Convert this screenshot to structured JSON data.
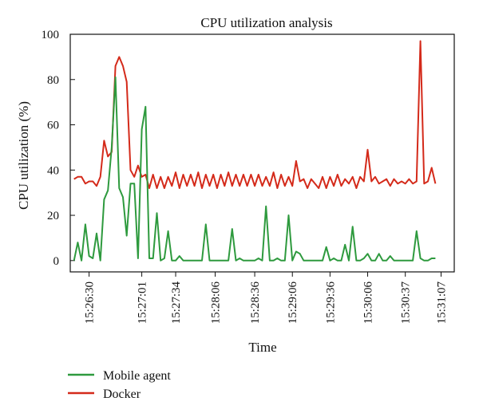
{
  "chart_data": {
    "type": "line",
    "title": "CPU utilization analysis",
    "xlabel": "Time",
    "ylabel": "CPU utilization (%)",
    "ylim": [
      -5,
      100
    ],
    "xlim": [
      -1,
      101
    ],
    "yticks": [
      0,
      20,
      40,
      60,
      80,
      100
    ],
    "grid": false,
    "legend": {
      "position": "bottom-left"
    },
    "x_ticks": [
      {
        "x": 4,
        "label": "15:26:30"
      },
      {
        "x": 18,
        "label": "15:27:01"
      },
      {
        "x": 27,
        "label": "15:27:34"
      },
      {
        "x": 37.5,
        "label": "15:28:06"
      },
      {
        "x": 48,
        "label": "15:28:36"
      },
      {
        "x": 58,
        "label": "15:29:06"
      },
      {
        "x": 68,
        "label": "15:29:36"
      },
      {
        "x": 78,
        "label": "15:30:06"
      },
      {
        "x": 88,
        "label": "15:30:37"
      },
      {
        "x": 97.5,
        "label": "15:31:07"
      }
    ],
    "series": [
      {
        "name": "Docker",
        "color": "#d42a1a",
        "points": [
          [
            0,
            36
          ],
          [
            1,
            37
          ],
          [
            2,
            37
          ],
          [
            3,
            34
          ],
          [
            4,
            35
          ],
          [
            5,
            35
          ],
          [
            6,
            33
          ],
          [
            7,
            37
          ],
          [
            8,
            53
          ],
          [
            9,
            46
          ],
          [
            10,
            48
          ],
          [
            11,
            86
          ],
          [
            12,
            90
          ],
          [
            13,
            86
          ],
          [
            14,
            79
          ],
          [
            15,
            40
          ],
          [
            16,
            37
          ],
          [
            17,
            42
          ],
          [
            18,
            37
          ],
          [
            19,
            38
          ],
          [
            20,
            32
          ],
          [
            21,
            38
          ],
          [
            22,
            32
          ],
          [
            23,
            37
          ],
          [
            24,
            32
          ],
          [
            25,
            37
          ],
          [
            26,
            33
          ],
          [
            27,
            39
          ],
          [
            28,
            32
          ],
          [
            29,
            38
          ],
          [
            30,
            33
          ],
          [
            31,
            38
          ],
          [
            32,
            33
          ],
          [
            33,
            39
          ],
          [
            34,
            32
          ],
          [
            35,
            38
          ],
          [
            36,
            33
          ],
          [
            37,
            38
          ],
          [
            38,
            32
          ],
          [
            39,
            38
          ],
          [
            40,
            33
          ],
          [
            41,
            39
          ],
          [
            42,
            33
          ],
          [
            43,
            38
          ],
          [
            44,
            33
          ],
          [
            45,
            38
          ],
          [
            46,
            33
          ],
          [
            47,
            38
          ],
          [
            48,
            33
          ],
          [
            49,
            38
          ],
          [
            50,
            33
          ],
          [
            51,
            37
          ],
          [
            52,
            33
          ],
          [
            53,
            39
          ],
          [
            54,
            32
          ],
          [
            55,
            38
          ],
          [
            56,
            33
          ],
          [
            57,
            37
          ],
          [
            58,
            33
          ],
          [
            59,
            44
          ],
          [
            60,
            35
          ],
          [
            61,
            36
          ],
          [
            62,
            32
          ],
          [
            63,
            36
          ],
          [
            64,
            34
          ],
          [
            65,
            32
          ],
          [
            66,
            37
          ],
          [
            67,
            32
          ],
          [
            68,
            37
          ],
          [
            69,
            33
          ],
          [
            70,
            38
          ],
          [
            71,
            33
          ],
          [
            72,
            36
          ],
          [
            73,
            34
          ],
          [
            74,
            37
          ],
          [
            75,
            32
          ],
          [
            76,
            37
          ],
          [
            77,
            35
          ],
          [
            78,
            49
          ],
          [
            79,
            35
          ],
          [
            80,
            37
          ],
          [
            81,
            34
          ],
          [
            82,
            35
          ],
          [
            83,
            36
          ],
          [
            84,
            33
          ],
          [
            85,
            36
          ],
          [
            86,
            34
          ],
          [
            87,
            35
          ],
          [
            88,
            34
          ],
          [
            89,
            36
          ],
          [
            90,
            34
          ],
          [
            91,
            35
          ],
          [
            92,
            97
          ],
          [
            93,
            34
          ],
          [
            94,
            35
          ],
          [
            95,
            41
          ],
          [
            96,
            34
          ]
        ]
      },
      {
        "name": "Mobile agent",
        "color": "#2e9a3e",
        "points": [
          [
            0,
            0
          ],
          [
            1,
            8
          ],
          [
            2,
            0
          ],
          [
            3,
            16
          ],
          [
            4,
            2
          ],
          [
            5,
            1
          ],
          [
            6,
            12
          ],
          [
            7,
            0
          ],
          [
            8,
            27
          ],
          [
            9,
            31
          ],
          [
            10,
            50
          ],
          [
            11,
            81
          ],
          [
            12,
            32
          ],
          [
            13,
            28
          ],
          [
            14,
            11
          ],
          [
            15,
            34
          ],
          [
            16,
            34
          ],
          [
            17,
            1
          ],
          [
            18,
            58
          ],
          [
            19,
            68
          ],
          [
            20,
            1
          ],
          [
            21,
            1
          ],
          [
            22,
            21
          ],
          [
            23,
            0
          ],
          [
            24,
            1
          ],
          [
            25,
            13
          ],
          [
            26,
            0
          ],
          [
            27,
            0
          ],
          [
            28,
            2
          ],
          [
            29,
            0
          ],
          [
            30,
            0
          ],
          [
            31,
            0
          ],
          [
            32,
            0
          ],
          [
            33,
            0
          ],
          [
            34,
            0
          ],
          [
            35,
            16
          ],
          [
            36,
            0
          ],
          [
            37,
            0
          ],
          [
            38,
            0
          ],
          [
            39,
            0
          ],
          [
            40,
            0
          ],
          [
            41,
            0
          ],
          [
            42,
            14
          ],
          [
            43,
            0
          ],
          [
            44,
            1
          ],
          [
            45,
            0
          ],
          [
            46,
            0
          ],
          [
            47,
            0
          ],
          [
            48,
            0
          ],
          [
            49,
            1
          ],
          [
            50,
            0
          ],
          [
            51,
            24
          ],
          [
            52,
            0
          ],
          [
            53,
            0
          ],
          [
            54,
            1
          ],
          [
            55,
            0
          ],
          [
            56,
            0
          ],
          [
            57,
            20
          ],
          [
            58,
            0
          ],
          [
            59,
            4
          ],
          [
            60,
            3
          ],
          [
            61,
            0
          ],
          [
            62,
            0
          ],
          [
            63,
            0
          ],
          [
            64,
            0
          ],
          [
            65,
            0
          ],
          [
            66,
            0
          ],
          [
            67,
            6
          ],
          [
            68,
            0
          ],
          [
            69,
            1
          ],
          [
            70,
            0
          ],
          [
            71,
            0
          ],
          [
            72,
            7
          ],
          [
            73,
            0
          ],
          [
            74,
            15
          ],
          [
            75,
            0
          ],
          [
            76,
            0
          ],
          [
            77,
            1
          ],
          [
            78,
            3
          ],
          [
            79,
            0
          ],
          [
            80,
            0
          ],
          [
            81,
            3
          ],
          [
            82,
            0
          ],
          [
            83,
            0
          ],
          [
            84,
            2
          ],
          [
            85,
            0
          ],
          [
            86,
            0
          ],
          [
            87,
            0
          ],
          [
            88,
            0
          ],
          [
            89,
            0
          ],
          [
            90,
            0
          ],
          [
            91,
            13
          ],
          [
            92,
            1
          ],
          [
            93,
            0
          ],
          [
            94,
            0
          ],
          [
            95,
            1
          ],
          [
            96,
            1
          ]
        ]
      }
    ]
  }
}
